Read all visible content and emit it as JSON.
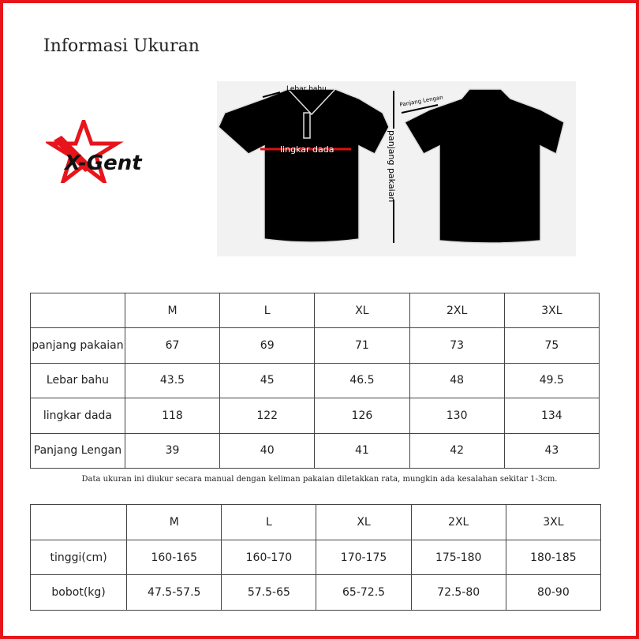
{
  "title": "Informasi Ukuran",
  "logo": {
    "text": "X-Gent",
    "accent": "#e8141b"
  },
  "diagram": {
    "labels": {
      "shoulder": "Lebar bahu",
      "chest": "lingkar dada",
      "sleeve": "Panjang Lengan",
      "length": "panjang pakaian"
    }
  },
  "size_table": {
    "headers": [
      "",
      "M",
      "L",
      "XL",
      "2XL",
      "3XL"
    ],
    "rows": [
      {
        "label": "panjang pakaian",
        "values": [
          "67",
          "69",
          "71",
          "73",
          "75"
        ]
      },
      {
        "label": "Lebar bahu",
        "values": [
          "43.5",
          "45",
          "46.5",
          "48",
          "49.5"
        ]
      },
      {
        "label": "lingkar dada",
        "values": [
          "118",
          "122",
          "126",
          "130",
          "134"
        ]
      },
      {
        "label": "Panjang Lengan",
        "values": [
          "39",
          "40",
          "41",
          "42",
          "43"
        ]
      }
    ]
  },
  "note": "Data ukuran ini diukur secara manual dengan keliman pakaian diletakkan rata, mungkin ada kesalahan sekitar 1-3cm.",
  "fit_table": {
    "headers": [
      "",
      "M",
      "L",
      "XL",
      "2XL",
      "3XL"
    ],
    "rows": [
      {
        "label": "tinggi(cm)",
        "values": [
          "160-165",
          "160-170",
          "170-175",
          "175-180",
          "180-185"
        ]
      },
      {
        "label": "bobot(kg)",
        "values": [
          "47.5-57.5",
          "57.5-65",
          "65-72.5",
          "72.5-80",
          "80-90"
        ]
      }
    ]
  }
}
